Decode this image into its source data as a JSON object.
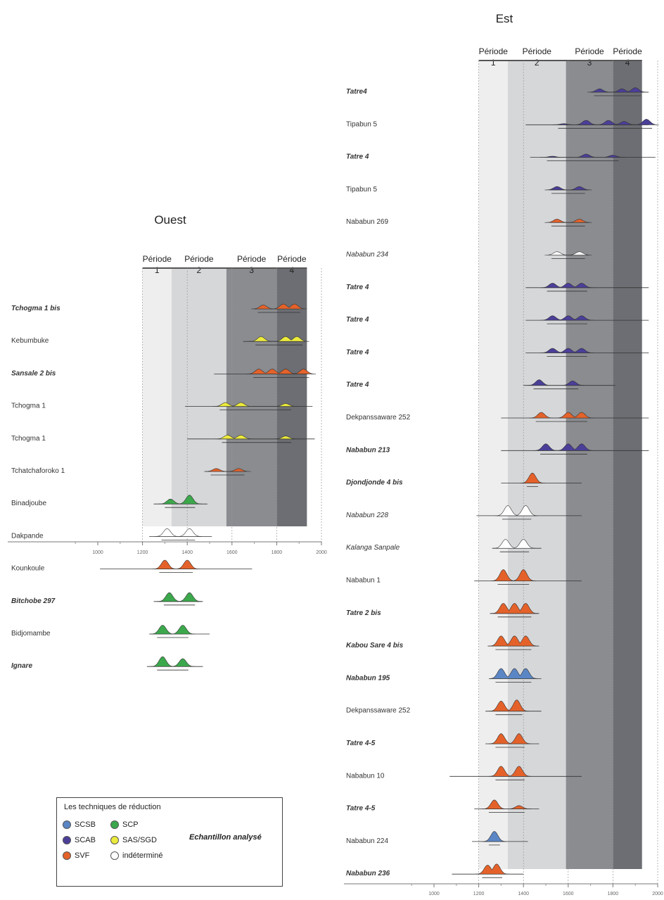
{
  "colors": {
    "SCSB": "#5b86c5",
    "SCAB": "#4a3f98",
    "SVF": "#e4622a",
    "SCP": "#3ca84c",
    "SAS/SGD": "#ecea3c",
    "indetermine": "#ffffff",
    "period1": "#eeeeee",
    "period2": "#d6d7d9",
    "period3": "#8a8c90",
    "period4": "#6c6e73"
  },
  "legend": {
    "title": "Les techniques de réduction",
    "note": "Echantillon analysé",
    "items": [
      {
        "key": "SCSB",
        "label": "SCSB"
      },
      {
        "key": "SCAB",
        "label": "SCAB"
      },
      {
        "key": "SVF",
        "label": "SVF"
      },
      {
        "key": "SCP",
        "label": "SCP"
      },
      {
        "key": "SAS/SGD",
        "label": "SAS/SGD"
      },
      {
        "key": "indetermine",
        "label": "indéterminé"
      }
    ]
  },
  "chart_data": [
    {
      "type": "area",
      "title": "Ouest",
      "xlim": [
        1000,
        2000
      ],
      "x_ticks": [
        "1000",
        "1200",
        "1400",
        "1600",
        "1800",
        "2000"
      ],
      "periods": [
        {
          "label": "Période",
          "num": "1",
          "start": 1200,
          "end": 1330
        },
        {
          "label": "Période",
          "num": "2",
          "start": 1330,
          "end": 1575
        },
        {
          "label": "Période",
          "num": "3",
          "start": 1575,
          "end": 1800
        },
        {
          "label": "Période",
          "num": "4",
          "start": 1800,
          "end": 1935
        }
      ],
      "samples": [
        {
          "site": "Tchogma 1 bis",
          "style": "bold",
          "technique": "SVF",
          "line": [
            1700,
            1900
          ],
          "peaks": [
            [
              1740,
              0.4
            ],
            [
              1830,
              0.5
            ],
            [
              1880,
              0.5
            ]
          ]
        },
        {
          "site": "Kebumbuke",
          "style": "normal",
          "technique": "SAS/SGD",
          "line": [
            1650,
            1900
          ],
          "peaks": [
            [
              1730,
              0.5
            ],
            [
              1840,
              0.5
            ],
            [
              1890,
              0.5
            ]
          ]
        },
        {
          "site": "Sansale 2 bis",
          "style": "bold",
          "technique": "SVF",
          "line": [
            1520,
            1940
          ],
          "peaks": [
            [
              1720,
              0.5
            ],
            [
              1780,
              0.5
            ],
            [
              1840,
              0.5
            ],
            [
              1920,
              0.5
            ]
          ]
        },
        {
          "site": "Tchogma 1",
          "style": "normal",
          "technique": "SAS/SGD",
          "line": [
            1390,
            1960
          ],
          "peaks": [
            [
              1570,
              0.4
            ],
            [
              1640,
              0.4
            ],
            [
              1840,
              0.3
            ]
          ]
        },
        {
          "site": "Tchogma 1",
          "style": "normal",
          "technique": "SAS/SGD",
          "line": [
            1400,
            1970
          ],
          "peaks": [
            [
              1580,
              0.4
            ],
            [
              1640,
              0.4
            ],
            [
              1840,
              0.3
            ]
          ]
        },
        {
          "site": "Tchatchaforoko 1",
          "style": "normal",
          "technique": "SVF",
          "line": [
            1480,
            1660
          ],
          "peaks": [
            [
              1530,
              0.3
            ],
            [
              1630,
              0.3
            ]
          ]
        },
        {
          "site": "Binadjoube",
          "style": "normal",
          "technique": "SCP",
          "line": [
            1250,
            1490
          ],
          "peaks": [
            [
              1325,
              0.5
            ],
            [
              1410,
              0.9
            ]
          ]
        },
        {
          "site": "Dakpande",
          "style": "normal",
          "technique": "indetermine",
          "line": [
            1230,
            1510
          ],
          "peaks": [
            [
              1310,
              0.8
            ],
            [
              1410,
              0.8
            ]
          ]
        },
        {
          "site": "Kounkoule",
          "style": "normal",
          "technique": "SVF",
          "line": [
            1010,
            1690
          ],
          "peaks": [
            [
              1300,
              0.9
            ],
            [
              1400,
              0.9
            ]
          ]
        },
        {
          "site": "Bitchobe 297",
          "style": "bold",
          "technique": "SCP",
          "line": [
            1250,
            1470
          ],
          "peaks": [
            [
              1320,
              0.9
            ],
            [
              1410,
              0.9
            ]
          ]
        },
        {
          "site": "Bidjomambe",
          "style": "normal",
          "technique": "SCP",
          "line": [
            1230,
            1500
          ],
          "peaks": [
            [
              1290,
              0.9
            ],
            [
              1380,
              0.9
            ]
          ]
        },
        {
          "site": "Ignare",
          "style": "bold",
          "technique": "SCP",
          "line": [
            1220,
            1470
          ],
          "peaks": [
            [
              1290,
              1.0
            ],
            [
              1380,
              0.8
            ]
          ]
        }
      ]
    },
    {
      "type": "area",
      "title": "Est",
      "xlim": [
        1000,
        2000
      ],
      "x_ticks": [
        "1000",
        "1200",
        "1400",
        "1600",
        "1800",
        "2000"
      ],
      "periods": [
        {
          "label": "Période",
          "num": "1",
          "start": 1200,
          "end": 1330
        },
        {
          "label": "Période",
          "num": "2",
          "start": 1330,
          "end": 1590
        },
        {
          "label": "Période",
          "num": "3",
          "start": 1590,
          "end": 1800
        },
        {
          "label": "Période",
          "num": "4",
          "start": 1800,
          "end": 1930
        }
      ],
      "samples": [
        {
          "site": "Tatre4",
          "style": "bold",
          "technique": "SCAB",
          "line": [
            1700,
            1960
          ],
          "peaks": [
            [
              1740,
              0.3
            ],
            [
              1840,
              0.3
            ],
            [
              1900,
              0.4
            ]
          ]
        },
        {
          "site": "Tipabun 5",
          "style": "normal",
          "technique": "SCAB",
          "line": [
            1410,
            1960
          ],
          "peaks": [
            [
              1580,
              0.1
            ],
            [
              1680,
              0.4
            ],
            [
              1780,
              0.4
            ],
            [
              1850,
              0.3
            ],
            [
              1950,
              0.5
            ]
          ]
        },
        {
          "site": "Tatre 4",
          "style": "bold",
          "technique": "SCAB",
          "line": [
            1430,
            1990
          ],
          "peaks": [
            [
              1530,
              0.1
            ],
            [
              1680,
              0.3
            ],
            [
              1800,
              0.2
            ]
          ]
        },
        {
          "site": "Tipabun 5",
          "style": "normal",
          "technique": "SCAB",
          "line": [
            1520,
            1690
          ],
          "peaks": [
            [
              1550,
              0.3
            ],
            [
              1650,
              0.3
            ]
          ]
        },
        {
          "site": "Nababun 269",
          "style": "normal",
          "technique": "SVF",
          "line": [
            1520,
            1690
          ],
          "peaks": [
            [
              1550,
              0.3
            ],
            [
              1650,
              0.3
            ]
          ]
        },
        {
          "site": "Nababun 234",
          "style": "ital",
          "technique": "indetermine",
          "line": [
            1520,
            1690
          ],
          "peaks": [
            [
              1550,
              0.3
            ],
            [
              1650,
              0.3
            ]
          ]
        },
        {
          "site": "Tatre 4",
          "style": "bold",
          "technique": "SCAB",
          "line": [
            1410,
            1960
          ],
          "peaks": [
            [
              1530,
              0.4
            ],
            [
              1600,
              0.4
            ],
            [
              1660,
              0.4
            ]
          ]
        },
        {
          "site": "Tatre 4",
          "style": "bold",
          "technique": "SCAB",
          "line": [
            1410,
            1960
          ],
          "peaks": [
            [
              1530,
              0.4
            ],
            [
              1600,
              0.4
            ],
            [
              1660,
              0.4
            ]
          ]
        },
        {
          "site": "Tatre 4",
          "style": "bold",
          "technique": "SCAB",
          "line": [
            1410,
            1960
          ],
          "peaks": [
            [
              1530,
              0.4
            ],
            [
              1600,
              0.4
            ],
            [
              1660,
              0.4
            ]
          ]
        },
        {
          "site": "Tatre 4",
          "style": "bold",
          "technique": "SCAB",
          "line": [
            1400,
            1810
          ],
          "peaks": [
            [
              1470,
              0.5
            ],
            [
              1620,
              0.4
            ]
          ]
        },
        {
          "site": "Dekpanssaware 252",
          "style": "normal",
          "technique": "SVF",
          "line": [
            1300,
            1960
          ],
          "peaks": [
            [
              1480,
              0.5
            ],
            [
              1600,
              0.5
            ],
            [
              1660,
              0.5
            ]
          ]
        },
        {
          "site": "Nababun 213",
          "style": "bold",
          "technique": "SCAB",
          "line": [
            1300,
            1960
          ],
          "peaks": [
            [
              1500,
              0.6
            ],
            [
              1600,
              0.6
            ],
            [
              1660,
              0.6
            ]
          ]
        },
        {
          "site": "Djondjonde 4 bis",
          "style": "bold",
          "technique": "SVF",
          "line": [
            1300,
            1660
          ],
          "peaks": [
            [
              1440,
              0.9
            ]
          ]
        },
        {
          "site": "Nababun 228",
          "style": "ital",
          "technique": "indetermine",
          "line": [
            1190,
            1660
          ],
          "peaks": [
            [
              1330,
              0.9
            ],
            [
              1410,
              0.9
            ]
          ]
        },
        {
          "site": "Kalanga Sanpale",
          "style": "ital",
          "technique": "indetermine",
          "line": [
            1260,
            1480
          ],
          "peaks": [
            [
              1320,
              0.8
            ],
            [
              1400,
              0.8
            ]
          ]
        },
        {
          "site": "Nababun 1",
          "style": "normal",
          "technique": "SVF",
          "line": [
            1180,
            1660
          ],
          "peaks": [
            [
              1310,
              1.0
            ],
            [
              1400,
              1.0
            ]
          ]
        },
        {
          "site": "Tatre 2 bis",
          "style": "bold",
          "technique": "SVF",
          "line": [
            1250,
            1470
          ],
          "peaks": [
            [
              1310,
              0.9
            ],
            [
              1360,
              0.9
            ],
            [
              1410,
              0.9
            ]
          ]
        },
        {
          "site": "Kabou Sare 4 bis",
          "style": "bold",
          "technique": "SVF",
          "line": [
            1240,
            1470
          ],
          "peaks": [
            [
              1300,
              0.9
            ],
            [
              1360,
              0.9
            ],
            [
              1410,
              0.9
            ]
          ]
        },
        {
          "site": "Nababun 195",
          "style": "bold",
          "technique": "SCSB",
          "line": [
            1250,
            1480
          ],
          "peaks": [
            [
              1300,
              0.9
            ],
            [
              1360,
              0.9
            ],
            [
              1410,
              0.9
            ]
          ]
        },
        {
          "site": "Dekpanssaware 252",
          "style": "normal",
          "technique": "SVF",
          "line": [
            1230,
            1480
          ],
          "peaks": [
            [
              1300,
              0.9
            ],
            [
              1370,
              1.0
            ]
          ]
        },
        {
          "site": "Tatre 4-5",
          "style": "bold",
          "technique": "SVF",
          "line": [
            1230,
            1470
          ],
          "peaks": [
            [
              1300,
              0.9
            ],
            [
              1380,
              0.9
            ]
          ]
        },
        {
          "site": "Nababun 10",
          "style": "normal",
          "technique": "SVF",
          "line": [
            1070,
            1660
          ],
          "peaks": [
            [
              1300,
              0.9
            ],
            [
              1380,
              0.9
            ]
          ]
        },
        {
          "site": "Tatre 4-5",
          "style": "bold",
          "technique": "SVF",
          "line": [
            1180,
            1470
          ],
          "peaks": [
            [
              1270,
              0.8
            ],
            [
              1380,
              0.3
            ]
          ]
        },
        {
          "site": "Nababun 224",
          "style": "normal",
          "technique": "SCSB",
          "line": [
            1170,
            1420
          ],
          "peaks": [
            [
              1270,
              0.9
            ]
          ]
        },
        {
          "site": "Nababun 236",
          "style": "bold",
          "technique": "SVF",
          "line": [
            1080,
            1400
          ],
          "peaks": [
            [
              1240,
              0.8
            ],
            [
              1280,
              0.9
            ]
          ]
        }
      ]
    }
  ]
}
